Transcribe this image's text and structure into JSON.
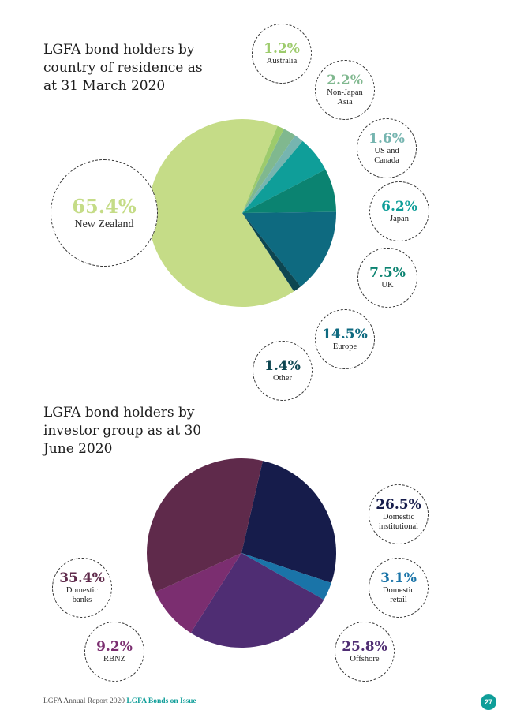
{
  "chart_data": [
    {
      "type": "pie",
      "title": "LGFA bond holders by country of residence as at 31 March 2020",
      "categories": [
        "New Zealand",
        "Australia",
        "Non-Japan Asia",
        "US and Canada",
        "Japan",
        "UK",
        "Europe",
        "Other"
      ],
      "values": [
        65.4,
        1.2,
        2.2,
        1.6,
        6.2,
        7.5,
        14.5,
        1.4
      ],
      "value_labels": [
        "65.4%",
        "1.2%",
        "2.2%",
        "1.6%",
        "6.2%",
        "7.5%",
        "14.5%",
        "1.4%"
      ],
      "colors": [
        "#c5dc87",
        "#9dcb6c",
        "#80b88f",
        "#76b5b0",
        "#0f9e99",
        "#0b8371",
        "#0e6a80",
        "#0d4651"
      ]
    },
    {
      "type": "pie",
      "title": "LGFA bond holders by investor group as at 30 June 2020",
      "categories": [
        "Domestic institutional",
        "Domestic retail",
        "Offshore",
        "RBNZ",
        "Domestic banks"
      ],
      "values": [
        26.5,
        3.1,
        25.8,
        9.2,
        35.4
      ],
      "value_labels": [
        "26.5%",
        "3.1%",
        "25.8%",
        "9.2%",
        "35.4%"
      ],
      "colors": [
        "#161c4b",
        "#1a74a8",
        "#4f2d73",
        "#7b2e70",
        "#5f2a4b"
      ]
    }
  ],
  "footer": {
    "report": "LGFA Annual Report 2020",
    "section": "LGFA Bonds on Issue",
    "page": "27"
  }
}
